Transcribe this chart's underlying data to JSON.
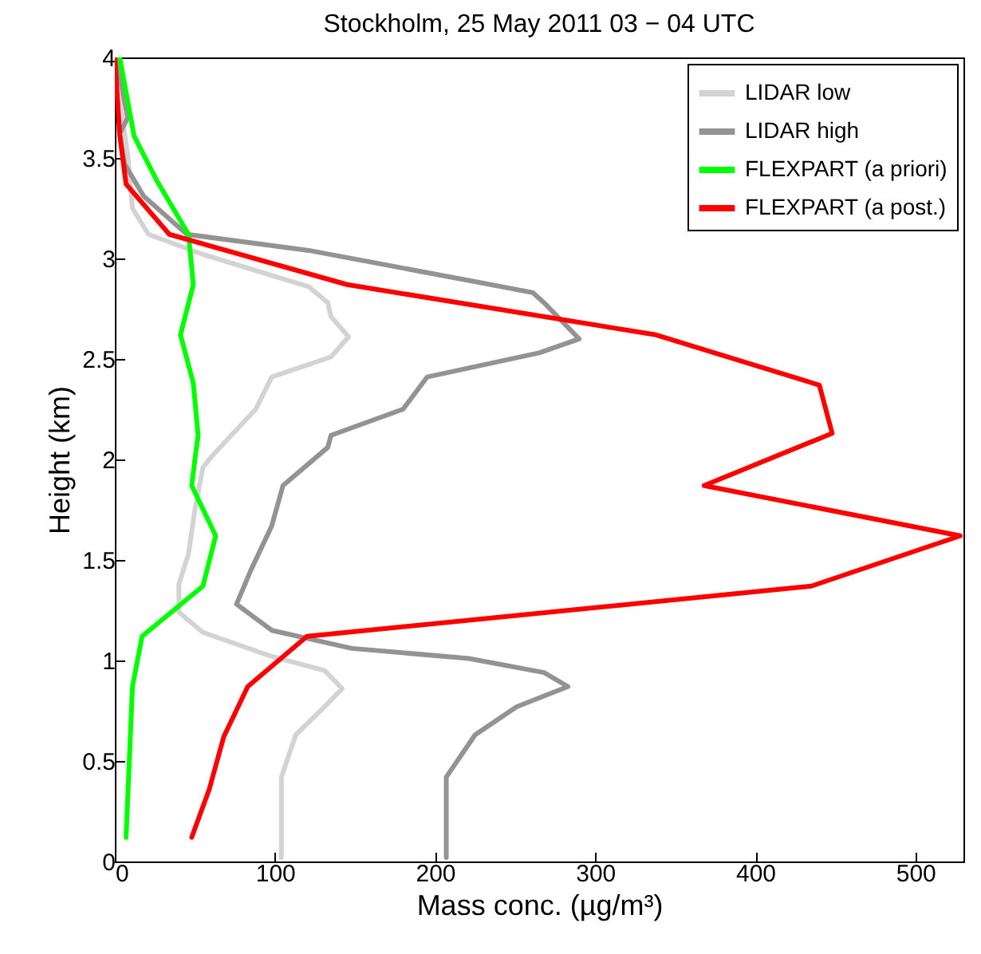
{
  "chart_data": {
    "type": "line",
    "title": "Stockholm, 25 May 2011 03 − 04 UTC",
    "xlabel": "Mass conc. (µg/m³)",
    "ylabel": "Height (km)",
    "xlim": [
      0,
      530
    ],
    "xticks": [
      0,
      100,
      200,
      300,
      400,
      500
    ],
    "ylim": [
      0,
      4
    ],
    "yticks": [
      0,
      0.5,
      1,
      1.5,
      2,
      2.5,
      3,
      3.5,
      4
    ],
    "legend": "top right",
    "series": [
      {
        "name": "LIDAR low",
        "color": "#d3d3d3",
        "x": [
          104,
          104,
          113,
          131,
          142,
          131,
          98,
          55,
          40,
          40,
          46,
          50,
          55,
          61,
          88,
          98,
          135,
          146,
          135,
          133,
          121,
          55,
          21,
          11,
          8,
          3,
          1
        ],
        "values": [
          0.02,
          0.42,
          0.63,
          0.77,
          0.86,
          0.95,
          1.02,
          1.14,
          1.24,
          1.38,
          1.53,
          1.75,
          1.96,
          2.02,
          2.25,
          2.41,
          2.51,
          2.61,
          2.71,
          2.78,
          2.86,
          3.02,
          3.12,
          3.25,
          3.52,
          3.79,
          4.0
        ]
      },
      {
        "name": "LIDAR high",
        "color": "#939393",
        "x": [
          207,
          207,
          225,
          251,
          283,
          268,
          221,
          148,
          98,
          76,
          85,
          98,
          105,
          133,
          135,
          180,
          195,
          265,
          290,
          268,
          261,
          228,
          121,
          45,
          18,
          6,
          3,
          8,
          1
        ],
        "values": [
          0.02,
          0.42,
          0.63,
          0.77,
          0.87,
          0.94,
          1.01,
          1.06,
          1.15,
          1.28,
          1.45,
          1.67,
          1.87,
          2.06,
          2.12,
          2.25,
          2.41,
          2.53,
          2.6,
          2.78,
          2.83,
          2.88,
          3.04,
          3.12,
          3.31,
          3.47,
          3.62,
          3.7,
          4.0
        ]
      },
      {
        "name": "FLEXPART (a priori)",
        "color": "#00ff00",
        "x": [
          7,
          11,
          17,
          55,
          63,
          48,
          50,
          52,
          49,
          41,
          49,
          46,
          26,
          12,
          3
        ],
        "values": [
          0.12,
          0.87,
          1.12,
          1.37,
          1.62,
          1.87,
          2.0,
          2.12,
          2.38,
          2.62,
          2.87,
          3.12,
          3.39,
          3.61,
          4.0
        ]
      },
      {
        "name": "FLEXPART (a post.)",
        "color": "#ff0000",
        "x": [
          48,
          59,
          68,
          83,
          120,
          435,
          528,
          368,
          448,
          440,
          338,
          145,
          34,
          7,
          3,
          1,
          0
        ],
        "values": [
          0.12,
          0.36,
          0.62,
          0.87,
          1.12,
          1.37,
          1.62,
          1.87,
          2.13,
          2.37,
          2.62,
          2.87,
          3.12,
          3.37,
          3.62,
          3.87,
          4.0
        ]
      }
    ]
  }
}
